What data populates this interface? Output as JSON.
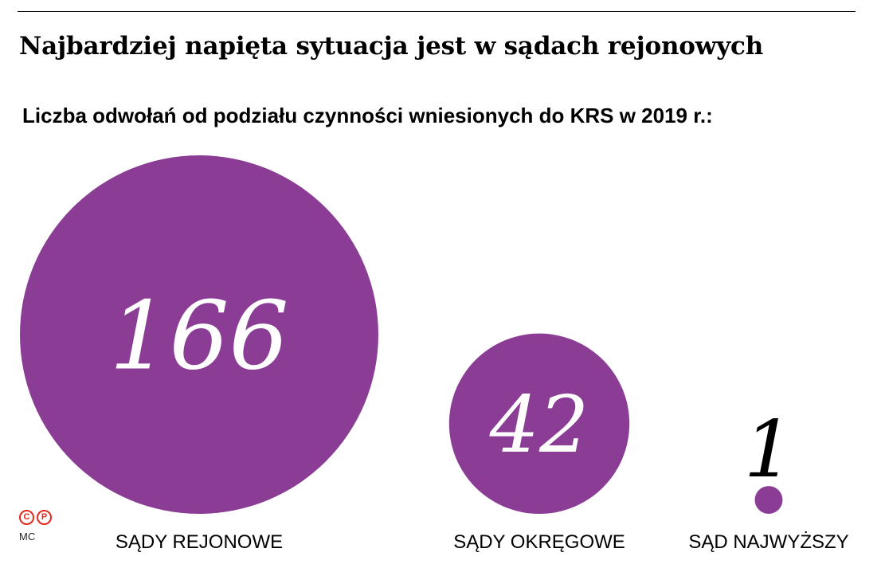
{
  "title": "Najbardziej napięta sytuacja jest w sądach rejonowych",
  "subtitle": "Liczba odwołań od podziału czynności wniesionych do KRS w 2019 r.:",
  "bubble_color": "#8b3d96",
  "chart_data": {
    "type": "bubble",
    "title": "Najbardziej napięta sytuacja jest w sądach rejonowych",
    "subtitle": "Liczba odwołań od podziału czynności wniesionych do KRS w 2019 r.:",
    "categories": [
      "SĄDY REJONOWE",
      "SĄDY OKRĘGOWE",
      "SĄD NAJWYŻSZY"
    ],
    "values": [
      166,
      42,
      1
    ],
    "value_labels": [
      "166",
      "42",
      "1"
    ]
  },
  "credit": {
    "icons": [
      "copyright-icon",
      "phonogram-icon"
    ],
    "icon_glyphs": [
      "C",
      "P"
    ],
    "author": "MC"
  }
}
